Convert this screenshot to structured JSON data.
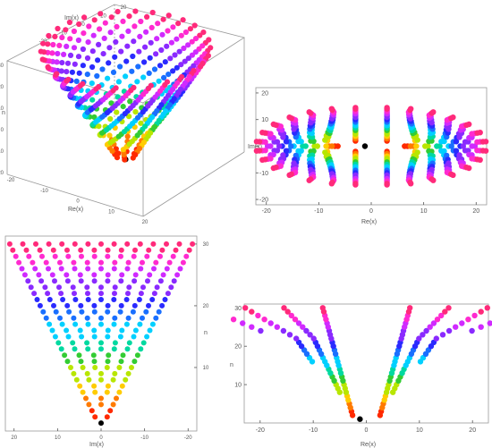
{
  "chart_data": [
    {
      "type": "scatter",
      "view": "3d",
      "xlabel": "Re(x)",
      "ylabel": "Im(x)",
      "zlabel": "n",
      "x_ticks": [
        "-20",
        "-10",
        "0",
        "10",
        "20"
      ],
      "y_ticks": [
        "20",
        "10",
        "0",
        "-10",
        "-20"
      ],
      "z_ticks": [
        "30",
        "20",
        "10",
        "0",
        "-10",
        "-20"
      ],
      "n_range": [
        1,
        30
      ],
      "marker_colors": [
        "#000000",
        "#ff2a00",
        "#ff7a00",
        "#ffcc00",
        "#b8e600",
        "#33cc33",
        "#00d9a0",
        "#00d0ff",
        "#1a6fff",
        "#2a2aff",
        "#8a2aff",
        "#d02aff",
        "#ff2ad0",
        "#ff2a7a"
      ]
    },
    {
      "type": "scatter",
      "view": "top",
      "xlabel": "Re(x)",
      "ylabel": "Im(x)",
      "x_ticks": [
        "-20",
        "-10",
        "0",
        "10",
        "20"
      ],
      "y_ticks": [
        "20",
        "10",
        "0",
        "-10",
        "-20"
      ],
      "xlim": [
        -22,
        22
      ],
      "ylim": [
        -22,
        22
      ]
    },
    {
      "type": "scatter",
      "view": "side-im",
      "xlabel": "Im(x)",
      "ylabel": "n",
      "x_ticks": [
        "20",
        "10",
        "0",
        "-10",
        "-20"
      ],
      "y_ticks": [
        "10",
        "20",
        "30"
      ],
      "xlim": [
        22,
        -22
      ],
      "ylim": [
        0,
        31
      ]
    },
    {
      "type": "scatter",
      "view": "side-re",
      "xlabel": "Re(x)",
      "ylabel": "n",
      "x_ticks": [
        "-20",
        "-10",
        "0",
        "10",
        "20"
      ],
      "y_ticks": [
        "10",
        "20",
        "30"
      ],
      "xlim": [
        -23,
        23
      ],
      "ylim": [
        0,
        31
      ]
    }
  ]
}
